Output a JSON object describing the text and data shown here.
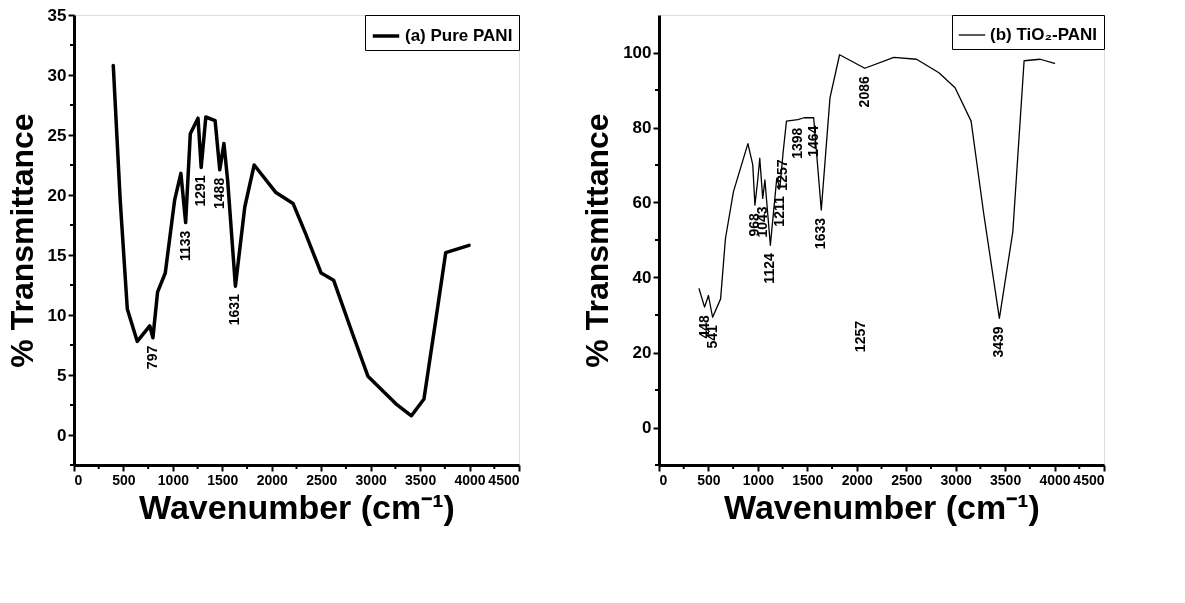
{
  "chart_data": [
    {
      "type": "line",
      "xlabel": "Wavenumber (cm⁻¹)",
      "ylabel": "% Transmittance",
      "legend": "top right",
      "grid": false,
      "xlim": [
        0,
        4500
      ],
      "xticks": [
        0,
        {
          "value": 250,
          "label": null
        },
        500,
        {
          "value": 750,
          "label": null
        },
        1000,
        {
          "value": 1250,
          "label": null
        },
        1500,
        {
          "value": 1750,
          "label": null
        },
        2000,
        {
          "value": 2250,
          "label": null
        },
        2500,
        {
          "value": 2750,
          "label": null
        },
        3000,
        {
          "value": 3250,
          "label": null
        },
        3500,
        {
          "value": 3750,
          "label": null
        },
        4000,
        {
          "value": 4250,
          "label": null
        },
        4500
      ],
      "ylim": [
        -2.5,
        35
      ],
      "yticks": [
        {
          "value": -2.5,
          "label": null
        },
        0,
        {
          "value": 2.5,
          "label": null
        },
        5,
        {
          "value": 7.5,
          "label": null
        },
        10,
        {
          "value": 12.5,
          "label": null
        },
        15,
        {
          "value": 17.5,
          "label": null
        },
        20,
        {
          "value": 22.5,
          "label": null
        },
        25,
        {
          "value": 27.5,
          "label": null
        },
        30,
        {
          "value": 32.5,
          "label": null
        },
        35
      ],
      "series": [
        {
          "name": "(a) Pure PANI",
          "color": "#000000",
          "x": [
            397,
            467,
            539,
            640,
            766,
            798,
            845,
            923,
            1018,
            1081,
            1129,
            1176,
            1254,
            1286,
            1333,
            1427,
            1474,
            1516,
            1554,
            1632,
            1727,
            1822,
            2042,
            2215,
            2341,
            2499,
            2625,
            2814,
            2972,
            3255,
            3412,
            3539,
            3664,
            3759,
            3995
          ],
          "values": [
            30.8,
            19.6,
            10.5,
            7.8,
            9.1,
            8.1,
            11.9,
            13.5,
            19.6,
            21.8,
            17.7,
            25.1,
            26.4,
            22.3,
            26.5,
            26.2,
            22.1,
            24.3,
            21.2,
            12.4,
            19.0,
            22.5,
            20.2,
            19.3,
            16.8,
            13.5,
            12.9,
            8.5,
            4.9,
            2.6,
            1.6,
            3.0,
            9.9,
            15.2,
            15.8
          ]
        }
      ],
      "annotations": [
        {
          "text": "797",
          "x": 798,
          "y": 8.1
        },
        {
          "text": "1133",
          "x": 1129,
          "y": 17.7
        },
        {
          "text": "1291",
          "x": 1286,
          "y": 22.3
        },
        {
          "text": "1488",
          "x": 1474,
          "y": 22.1
        },
        {
          "text": "1631",
          "x": 1632,
          "y": 12.4
        }
      ]
    },
    {
      "type": "line",
      "xlabel": "Wavenumber (cm⁻¹)",
      "ylabel": "% Transmittance",
      "legend": "top right",
      "grid": false,
      "xlim": [
        0,
        4500
      ],
      "xticks": [
        0,
        {
          "value": 250,
          "label": null
        },
        500,
        {
          "value": 750,
          "label": null
        },
        1000,
        {
          "value": 1250,
          "label": null
        },
        1500,
        {
          "value": 1750,
          "label": null
        },
        2000,
        {
          "value": 2250,
          "label": null
        },
        2500,
        {
          "value": 2750,
          "label": null
        },
        3000,
        {
          "value": 3250,
          "label": null
        },
        3500,
        {
          "value": 3750,
          "label": null
        },
        4000,
        {
          "value": 4250,
          "label": null
        },
        4500
      ],
      "ylim": [
        -10,
        110
      ],
      "yticks": [
        {
          "value": -10,
          "label": null
        },
        0,
        {
          "value": 10,
          "label": null
        },
        20,
        {
          "value": 30,
          "label": null
        },
        40,
        {
          "value": 50,
          "label": null
        },
        60,
        {
          "value": 70,
          "label": null
        },
        80,
        {
          "value": 90,
          "label": null
        },
        100
      ],
      "series": [
        {
          "name": "(b) TiO₂-PANI",
          "color": "#000000",
          "x": [
            405,
            461,
            500,
            542,
            623,
            672,
            753,
            899,
            948,
            970,
            997,
            1019,
            1049,
            1071,
            1126,
            1191,
            1222,
            1256,
            1289,
            1403,
            1467,
            1564,
            1641,
            1729,
            1826,
            2081,
            2375,
            2604,
            2831,
            2994,
            3156,
            3286,
            3442,
            3578,
            3692,
            3854,
            4000
          ],
          "values": [
            37.0,
            32.1,
            35.2,
            29.4,
            34.3,
            50.4,
            62.9,
            75.7,
            70.1,
            59.3,
            65.6,
            71.8,
            61.1,
            66.0,
            48.6,
            66.5,
            63.8,
            73.6,
            81.7,
            82.1,
            82.6,
            82.6,
            58.0,
            87.9,
            99.4,
            95.8,
            98.7,
            98.2,
            94.6,
            90.6,
            81.7,
            56.6,
            29.1,
            52.2,
            97.8,
            98.2,
            97.1
          ]
        }
      ],
      "annotations": [
        {
          "text": "448",
          "x": 461,
          "y": 32.1
        },
        {
          "text": "541",
          "x": 542,
          "y": 29.4
        },
        {
          "text": "968",
          "x": 970,
          "y": 59.3
        },
        {
          "text": "1043",
          "x": 1049,
          "y": 61.1
        },
        {
          "text": "1124",
          "x": 1126,
          "y": 48.6
        },
        {
          "text": "1211",
          "x": 1222,
          "y": 63.8
        },
        {
          "text": "1257",
          "x": 1256,
          "y": 73.6
        },
        {
          "text": "1398",
          "x": 1403,
          "y": 82.1
        },
        {
          "text": "1464",
          "x": 1564,
          "y": 82.6
        },
        {
          "text": "1633",
          "x": 1641,
          "y": 58.0
        },
        {
          "text": "2086",
          "x": 2081,
          "y": 95.8
        },
        "1257",
        {
          "text": "3439",
          "x": 3442,
          "y": 29.1
        }
      ]
    }
  ]
}
